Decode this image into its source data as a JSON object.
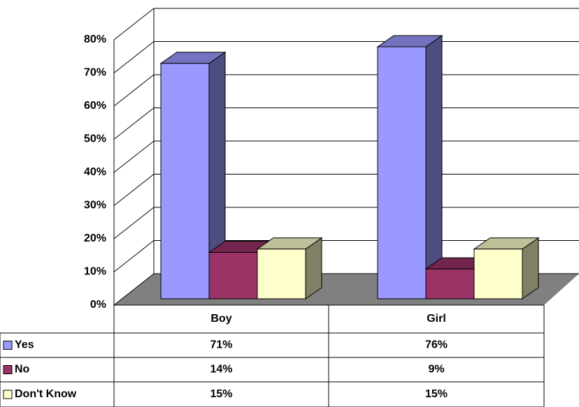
{
  "chart_data": {
    "type": "bar3d",
    "categories": [
      "Boy",
      "Girl"
    ],
    "series": [
      {
        "name": "Yes",
        "color": "#9999ff",
        "values": [
          71,
          76
        ],
        "value_labels": [
          "71%",
          "76%"
        ]
      },
      {
        "name": "No",
        "color": "#993366",
        "values": [
          14,
          9
        ],
        "value_labels": [
          "14%",
          "9%"
        ]
      },
      {
        "name": "Don't Know",
        "color": "#ffffcc",
        "values": [
          15,
          15
        ],
        "value_labels": [
          "15%",
          "15%"
        ]
      }
    ],
    "ylim": [
      0,
      80
    ],
    "yticks": [
      {
        "value": 0,
        "label": "0%"
      },
      {
        "value": 10,
        "label": "10%"
      },
      {
        "value": 20,
        "label": "20%"
      },
      {
        "value": 30,
        "label": "30%"
      },
      {
        "value": 40,
        "label": "40%"
      },
      {
        "value": 50,
        "label": "50%"
      },
      {
        "value": 60,
        "label": "60%"
      },
      {
        "value": 70,
        "label": "70%"
      },
      {
        "value": 80,
        "label": "80%"
      }
    ],
    "grid": true
  }
}
